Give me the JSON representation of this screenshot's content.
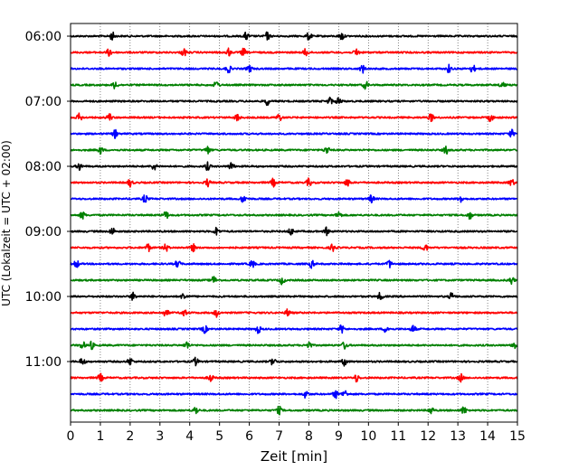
{
  "chart_data": {
    "type": "line",
    "title": "",
    "xlabel": "Zeit  [min]",
    "ylabel": "UTC (Lokalzeit = UTC + 02:00)",
    "xlim": [
      0,
      15
    ],
    "x_ticks": [
      "0",
      "1",
      "2",
      "3",
      "4",
      "5",
      "6",
      "7",
      "8",
      "9",
      "10",
      "11",
      "12",
      "13",
      "14",
      "15"
    ],
    "y_ticks": [
      "06:00",
      "07:00",
      "08:00",
      "09:00",
      "10:00",
      "11:00"
    ],
    "vertical_grid": "dotted, every minute",
    "trace_colors": [
      "#000000",
      "#ff0000",
      "#0000ff",
      "#008000"
    ],
    "traces": [
      {
        "start": "06:00",
        "color": "#000000",
        "bursts": [
          1.4,
          5.9,
          6.6,
          8.0,
          9.1
        ]
      },
      {
        "start": "06:15",
        "color": "#ff0000",
        "bursts": [
          1.3,
          3.8,
          5.3,
          5.8,
          7.9,
          9.6
        ]
      },
      {
        "start": "06:30",
        "color": "#0000ff",
        "bursts": [
          5.3,
          6.0,
          9.8,
          12.7,
          13.5
        ]
      },
      {
        "start": "06:45",
        "color": "#008000",
        "bursts": [
          1.5,
          4.9,
          9.9,
          14.5
        ]
      },
      {
        "start": "07:00",
        "color": "#000000",
        "bursts": [
          6.6,
          8.7,
          9.0
        ]
      },
      {
        "start": "07:15",
        "color": "#ff0000",
        "bursts": [
          0.3,
          1.3,
          5.6,
          7.0,
          12.1,
          14.1
        ]
      },
      {
        "start": "07:30",
        "color": "#0000ff",
        "bursts": [
          1.5,
          14.8
        ]
      },
      {
        "start": "07:45",
        "color": "#008000",
        "bursts": [
          1.0,
          4.6,
          8.6,
          12.6
        ]
      },
      {
        "start": "08:00",
        "color": "#000000",
        "bursts": [
          0.3,
          2.8,
          4.6,
          5.4
        ]
      },
      {
        "start": "08:15",
        "color": "#ff0000",
        "bursts": [
          2.0,
          4.6,
          6.8,
          8.0,
          9.3,
          14.8
        ]
      },
      {
        "start": "08:30",
        "color": "#0000ff",
        "bursts": [
          2.5,
          5.8,
          10.1,
          13.1
        ]
      },
      {
        "start": "08:45",
        "color": "#008000",
        "bursts": [
          0.4,
          3.2,
          9.0,
          13.4
        ]
      },
      {
        "start": "09:00",
        "color": "#000000",
        "bursts": [
          1.4,
          4.9,
          7.4,
          8.6
        ]
      },
      {
        "start": "09:15",
        "color": "#ff0000",
        "bursts": [
          2.6,
          3.2,
          4.1,
          8.8,
          11.9
        ]
      },
      {
        "start": "09:30",
        "color": "#0000ff",
        "bursts": [
          0.2,
          3.6,
          6.1,
          8.1,
          10.7
        ]
      },
      {
        "start": "09:45",
        "color": "#008000",
        "bursts": [
          4.8,
          7.1,
          14.8
        ]
      },
      {
        "start": "10:00",
        "color": "#000000",
        "bursts": [
          2.1,
          3.8,
          10.4,
          12.8
        ]
      },
      {
        "start": "10:15",
        "color": "#ff0000",
        "bursts": [
          3.2,
          3.8,
          4.9,
          7.3
        ]
      },
      {
        "start": "10:30",
        "color": "#0000ff",
        "bursts": [
          4.5,
          6.3,
          9.1,
          10.6,
          11.5
        ]
      },
      {
        "start": "10:45",
        "color": "#008000",
        "bursts": [
          0.4,
          0.7,
          3.9,
          8.0,
          9.2,
          14.9
        ]
      },
      {
        "start": "11:00",
        "color": "#000000",
        "bursts": [
          0.4,
          2.0,
          4.2,
          6.8,
          9.2
        ]
      },
      {
        "start": "11:15",
        "color": "#ff0000",
        "bursts": [
          1.0,
          4.7,
          9.6,
          13.1
        ]
      },
      {
        "start": "11:30",
        "color": "#0000ff",
        "bursts": [
          7.9,
          8.9,
          9.2
        ]
      },
      {
        "start": "11:45",
        "color": "#008000",
        "bursts": [
          4.2,
          7.0,
          12.1,
          13.2
        ]
      }
    ]
  }
}
